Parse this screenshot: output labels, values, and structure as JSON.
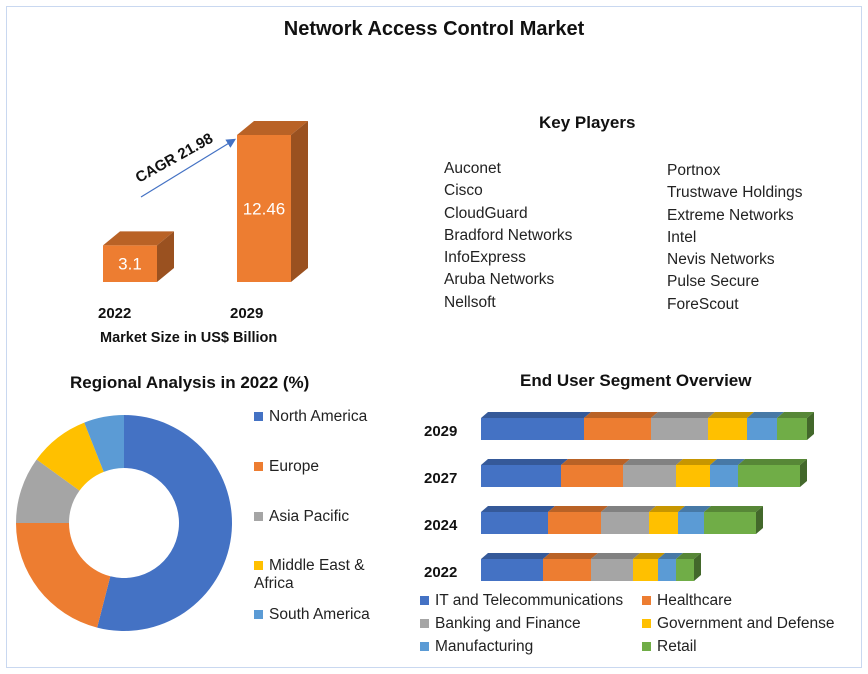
{
  "title": "Network Access Control Market",
  "colors": {
    "blue": "#4472c4",
    "orange": "#ed7d31",
    "gray": "#a5a5a5",
    "yellow": "#ffc000",
    "lightblue": "#5b9bd5",
    "green": "#70ad47",
    "bar": "#ed7d31"
  },
  "chart_data": [
    {
      "type": "bar",
      "categories": [
        "2022",
        "2029"
      ],
      "values": [
        3.1,
        12.46
      ],
      "data_labels": [
        "3.1",
        "12.46"
      ],
      "xlabel": "Market Size in US$ Billion",
      "annotation": "CAGR 21.98"
    },
    {
      "type": "pie",
      "title": "Regional Analysis in 2022 (%)",
      "donut": true,
      "legend_position": "right",
      "labels": [
        "North America",
        "Europe",
        "Asia Pacific",
        "Middle East & Africa",
        "South America"
      ],
      "legend_lines": [
        [
          "North America"
        ],
        [
          "Europe"
        ],
        [
          "Asia Pacific"
        ],
        [
          "Middle East &",
          "Africa"
        ],
        [
          "South America"
        ]
      ],
      "values": [
        54,
        21,
        10,
        9,
        6
      ],
      "colors": [
        "#4472c4",
        "#ed7d31",
        "#a5a5a5",
        "#ffc000",
        "#5b9bd5"
      ]
    },
    {
      "type": "bar",
      "orientation": "horizontal",
      "stacked": true,
      "title": "End User Segment Overview",
      "categories": [
        "2029",
        "2027",
        "2024",
        "2022"
      ],
      "legend_position": "bottom",
      "series": [
        {
          "name": "IT and Telecommunications",
          "color": "#4472c4",
          "values": [
            103,
            80,
            67,
            62
          ]
        },
        {
          "name": "Healthcare",
          "color": "#ed7d31",
          "values": [
            67,
            62,
            53,
            48
          ]
        },
        {
          "name": "Banking and Finance",
          "color": "#a5a5a5",
          "values": [
            57,
            53,
            48,
            42
          ]
        },
        {
          "name": "Government and Defense",
          "color": "#ffc000",
          "values": [
            39,
            34,
            29,
            25
          ]
        },
        {
          "name": "Manufacturing",
          "color": "#5b9bd5",
          "values": [
            30,
            28,
            26,
            18
          ]
        },
        {
          "name": "Retail",
          "color": "#70ad47",
          "values": [
            30,
            62,
            52,
            18
          ]
        }
      ]
    }
  ],
  "key_players": {
    "title": "Key Players",
    "col1": [
      "Auconet",
      "Cisco",
      "CloudGuard",
      "Bradford Networks",
      "InfoExpress",
      "Aruba Networks",
      "Nellsoft"
    ],
    "col2": [
      "Portnox",
      "Trustwave Holdings",
      "Extreme Networks",
      "Intel",
      "Nevis Networks",
      "Pulse Secure",
      "ForeScout"
    ]
  }
}
